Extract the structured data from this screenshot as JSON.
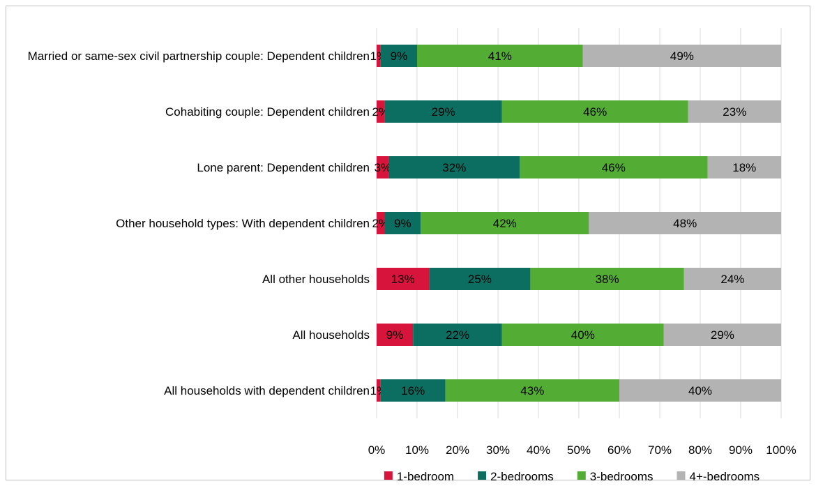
{
  "chart_data": {
    "type": "bar",
    "orientation": "horizontal",
    "stacked": "percent",
    "categories": [
      "Married or same-sex civil partnership couple: Dependent children",
      "Cohabiting couple: Dependent children",
      "Lone parent: Dependent children",
      "Other household types: With dependent children",
      "All other households",
      "All households",
      "All households with dependent children"
    ],
    "series": [
      {
        "name": "1-bedroom",
        "color": "#d7143c",
        "values": [
          1,
          2,
          3,
          2,
          13,
          9,
          1
        ],
        "labels": [
          "1%",
          "2%",
          "3%",
          "2%",
          "13%",
          "9%",
          "1%"
        ]
      },
      {
        "name": "2-bedrooms",
        "color": "#0b6e61",
        "values": [
          9,
          29,
          32,
          9,
          25,
          22,
          16
        ],
        "labels": [
          "9%",
          "29%",
          "32%",
          "9%",
          "25%",
          "22%",
          "16%"
        ]
      },
      {
        "name": "3-bedrooms",
        "color": "#53ac34",
        "values": [
          41,
          46,
          46,
          42,
          38,
          40,
          43
        ],
        "labels": [
          "41%",
          "46%",
          "46%",
          "42%",
          "38%",
          "40%",
          "43%"
        ]
      },
      {
        "name": "4+-bedrooms",
        "color": "#b3b3b3",
        "values": [
          49,
          23,
          18,
          48,
          24,
          29,
          40
        ],
        "labels": [
          "49%",
          "23%",
          "18%",
          "48%",
          "24%",
          "29%",
          "40%"
        ]
      }
    ],
    "x_ticks": [
      "0%",
      "10%",
      "20%",
      "30%",
      "40%",
      "50%",
      "60%",
      "70%",
      "80%",
      "90%",
      "100%"
    ],
    "xlim": [
      0,
      100
    ],
    "grid": true,
    "legend": "bottom"
  }
}
